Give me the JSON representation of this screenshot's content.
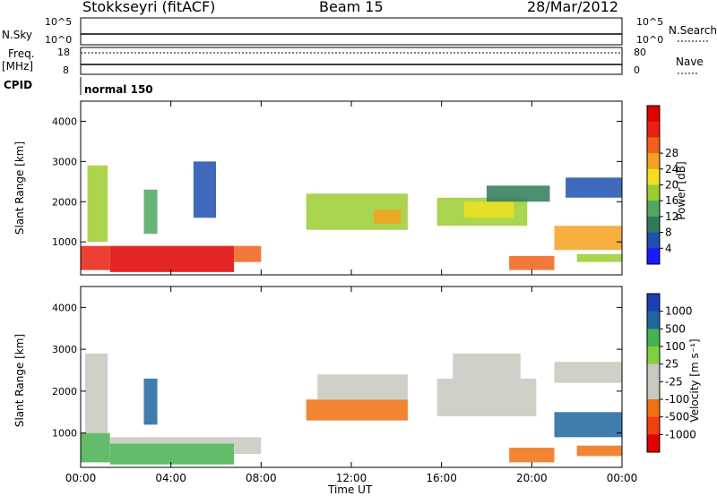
{
  "header": {
    "radar": "Stokkseyri (fitACF)",
    "beam": "Beam 15",
    "date": "28/Mar/2012"
  },
  "top_panels": {
    "nsky_label": "N.Sky",
    "nsky_ticks": [
      "10^5",
      "10^0"
    ],
    "nsearch_label": "N.Search",
    "nsearch_ticks": [
      "10^5",
      "10^0"
    ],
    "freq_label": "Freq.",
    "freq_unit": "[MHz]",
    "freq_ticks": [
      "18",
      "8"
    ],
    "nave_label": "Nave",
    "nave_ticks": [
      "80",
      "0"
    ],
    "cpid_label": "CPID",
    "cpid_value": "normal 150"
  },
  "colors": {
    "power_scale": [
      "#1a1aff",
      "#1f4fb0",
      "#2f7a5a",
      "#4fa860",
      "#9ccc30",
      "#f0e020",
      "#f5a020",
      "#f06018",
      "#e82010",
      "#e00000"
    ],
    "velocity_scale": [
      "#1b3fb5",
      "#1f66a0",
      "#2a8a70",
      "#47b050",
      "#7fd040",
      "#c8c8c0",
      "#c8c8c0",
      "#f0a040",
      "#f07010",
      "#f04010",
      "#e00000"
    ]
  },
  "chart_data": [
    {
      "type": "heatmap",
      "title": "Power",
      "ylabel": "Slant Range [km]",
      "xlabel": "Time UT",
      "x_ticks": [
        "00:00",
        "04:00",
        "08:00",
        "12:00",
        "16:00",
        "20:00",
        "00:00"
      ],
      "y_ticks": [
        "1000",
        "2000",
        "3000",
        "4000"
      ],
      "ylim": [
        180,
        4500
      ],
      "xlim_hours": [
        0,
        24
      ],
      "colorbar_label": "Power [dB]",
      "colorbar_ticks": [
        "4",
        "8",
        "12",
        "16",
        "20",
        "24",
        "28"
      ],
      "regions": [
        {
          "t0": 0.0,
          "t1": 1.3,
          "r0": 300,
          "r1": 900,
          "level": 26
        },
        {
          "t0": 0.3,
          "t1": 1.2,
          "r0": 1000,
          "r1": 2900,
          "level": 14
        },
        {
          "t0": 1.3,
          "t1": 6.8,
          "r0": 250,
          "r1": 900,
          "level": 28
        },
        {
          "t0": 6.8,
          "t1": 8.0,
          "r0": 500,
          "r1": 900,
          "level": 24
        },
        {
          "t0": 2.8,
          "t1": 3.4,
          "r0": 1200,
          "r1": 2300,
          "level": 10
        },
        {
          "t0": 5.0,
          "t1": 6.0,
          "r0": 1600,
          "r1": 3000,
          "level": 4
        },
        {
          "t0": 10.0,
          "t1": 14.5,
          "r0": 1300,
          "r1": 2200,
          "level": 14
        },
        {
          "t0": 13.0,
          "t1": 14.2,
          "r0": 1450,
          "r1": 1800,
          "level": 20
        },
        {
          "t0": 15.8,
          "t1": 19.8,
          "r0": 1400,
          "r1": 2100,
          "level": 14
        },
        {
          "t0": 17.0,
          "t1": 19.2,
          "r0": 1600,
          "r1": 2000,
          "level": 18
        },
        {
          "t0": 18.0,
          "t1": 20.8,
          "r0": 2000,
          "r1": 2400,
          "level": 8
        },
        {
          "t0": 19.0,
          "t1": 21.0,
          "r0": 300,
          "r1": 650,
          "level": 22
        },
        {
          "t0": 21.0,
          "t1": 24.0,
          "r0": 800,
          "r1": 1400,
          "level": 20
        },
        {
          "t0": 21.5,
          "t1": 24.0,
          "r0": 2100,
          "r1": 2600,
          "level": 6
        },
        {
          "t0": 22.0,
          "t1": 24.0,
          "r0": 500,
          "r1": 700,
          "level": 14
        }
      ]
    },
    {
      "type": "heatmap",
      "title": "Velocity",
      "ylabel": "Slant Range [km]",
      "xlabel": "Time UT",
      "x_ticks": [
        "00:00",
        "04:00",
        "08:00",
        "12:00",
        "16:00",
        "20:00",
        "00:00"
      ],
      "y_ticks": [
        "1000",
        "2000",
        "3000",
        "4000"
      ],
      "ylim": [
        180,
        4500
      ],
      "xlim_hours": [
        0,
        24
      ],
      "colorbar_label": "Velocity [m s⁻¹]",
      "colorbar_ticks": [
        "1000",
        "500",
        "100",
        "25",
        "-25",
        "-100",
        "-500",
        "-1000"
      ],
      "regions": [
        {
          "t0": 0.0,
          "t1": 1.3,
          "r0": 300,
          "r1": 1000,
          "level": 100
        },
        {
          "t0": 0.2,
          "t1": 1.2,
          "r0": 1000,
          "r1": 2900,
          "level": 0
        },
        {
          "t0": 1.3,
          "t1": 6.8,
          "r0": 250,
          "r1": 750,
          "level": 100
        },
        {
          "t0": 1.3,
          "t1": 6.8,
          "r0": 750,
          "r1": 900,
          "level": 0
        },
        {
          "t0": 6.8,
          "t1": 8.0,
          "r0": 500,
          "r1": 900,
          "level": 0
        },
        {
          "t0": 2.8,
          "t1": 3.4,
          "r0": 1200,
          "r1": 2300,
          "level": 500
        },
        {
          "t0": 10.0,
          "t1": 14.5,
          "r0": 1300,
          "r1": 1800,
          "level": -500
        },
        {
          "t0": 10.5,
          "t1": 14.5,
          "r0": 1800,
          "r1": 2400,
          "level": 0
        },
        {
          "t0": 15.8,
          "t1": 20.2,
          "r0": 1400,
          "r1": 2300,
          "level": 0
        },
        {
          "t0": 16.5,
          "t1": 19.5,
          "r0": 2300,
          "r1": 2900,
          "level": 0
        },
        {
          "t0": 19.0,
          "t1": 21.0,
          "r0": 300,
          "r1": 650,
          "level": -500
        },
        {
          "t0": 21.0,
          "t1": 24.0,
          "r0": 900,
          "r1": 1500,
          "level": 500
        },
        {
          "t0": 21.0,
          "t1": 24.0,
          "r0": 2200,
          "r1": 2700,
          "level": 0
        },
        {
          "t0": 22.0,
          "t1": 24.0,
          "r0": 450,
          "r1": 700,
          "level": -500
        }
      ]
    }
  ]
}
